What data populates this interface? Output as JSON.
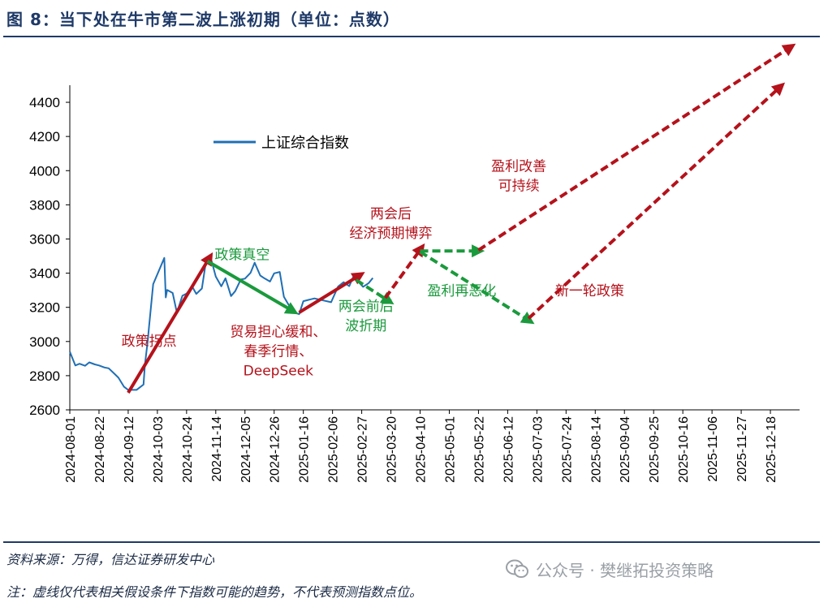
{
  "header": {
    "title": "图 8：当下处在牛市第二波上涨初期（单位：点数）"
  },
  "footer": {
    "source": "资料来源：万得，信达证券研发中心",
    "note": "注：虚线仅代表相关假设条件下指数可能的趋势，不代表预测指数点位。",
    "watermark": "公众号 · 樊继拓投资策略",
    "watermark_icon": "wechat-icon"
  },
  "chart_data": {
    "type": "line",
    "ylim": [
      2600,
      4500
    ],
    "yticks": [
      2600,
      2800,
      3000,
      3200,
      3400,
      3600,
      3800,
      4000,
      4200,
      4400
    ],
    "xlim": [
      "2024-08-01",
      "2026-01-08"
    ],
    "xticks": [
      "2024-08-01",
      "2024-08-22",
      "2024-09-12",
      "2024-10-03",
      "2024-10-24",
      "2024-11-14",
      "2024-12-05",
      "2024-12-26",
      "2025-01-16",
      "2025-02-06",
      "2025-02-27",
      "2025-03-20",
      "2025-04-10",
      "2025-05-01",
      "2025-05-22",
      "2025-06-12",
      "2025-07-03",
      "2025-07-24",
      "2025-08-14",
      "2025-09-04",
      "2025-09-25",
      "2025-10-16",
      "2025-11-06",
      "2025-11-27",
      "2025-12-18"
    ],
    "legend": {
      "position": "top-left"
    },
    "colors": {
      "series": "#1f6fb5",
      "policy_arrow": "#b5121b",
      "correction_arrow": "#1a9a3c",
      "axis": "#000000"
    },
    "series": [
      {
        "name": "上证综合指数",
        "x": [
          "2024-08-01",
          "2024-08-05",
          "2024-08-08",
          "2024-08-12",
          "2024-08-15",
          "2024-08-19",
          "2024-08-22",
          "2024-08-26",
          "2024-08-29",
          "2024-09-02",
          "2024-09-05",
          "2024-09-09",
          "2024-09-12",
          "2024-09-18",
          "2024-09-23",
          "2024-09-24",
          "2024-09-26",
          "2024-09-27",
          "2024-09-30",
          "2024-10-08",
          "2024-10-09",
          "2024-10-10",
          "2024-10-14",
          "2024-10-17",
          "2024-10-21",
          "2024-10-24",
          "2024-10-28",
          "2024-10-31",
          "2024-11-04",
          "2024-11-07",
          "2024-11-11",
          "2024-11-14",
          "2024-11-18",
          "2024-11-21",
          "2024-11-25",
          "2024-11-28",
          "2024-12-02",
          "2024-12-05",
          "2024-12-09",
          "2024-12-12",
          "2024-12-16",
          "2024-12-19",
          "2024-12-23",
          "2024-12-26",
          "2024-12-30",
          "2025-01-02",
          "2025-01-06",
          "2025-01-10",
          "2025-01-13",
          "2025-01-16",
          "2025-01-20",
          "2025-01-24",
          "2025-02-05",
          "2025-02-10",
          "2025-02-14",
          "2025-02-18",
          "2025-02-21",
          "2025-02-25",
          "2025-02-28",
          "2025-03-04",
          "2025-03-07"
        ],
        "values": [
          2940,
          2860,
          2870,
          2858,
          2878,
          2866,
          2860,
          2848,
          2843,
          2812,
          2788,
          2735,
          2717,
          2717,
          2748,
          2863,
          3000,
          3087,
          3336,
          3489,
          3258,
          3302,
          3284,
          3169,
          3268,
          3280,
          3322,
          3279,
          3310,
          3470,
          3470,
          3380,
          3323,
          3370,
          3266,
          3295,
          3363,
          3368,
          3402,
          3461,
          3386,
          3370,
          3351,
          3399,
          3407,
          3262,
          3206,
          3168,
          3160,
          3236,
          3244,
          3252,
          3230,
          3322,
          3347,
          3324,
          3380,
          3346,
          3320,
          3342,
          3372
        ]
      }
    ],
    "arrows": [
      {
        "style": "solid",
        "color": "policy_arrow",
        "from": [
          "2024-09-12",
          2700
        ],
        "to": [
          "2024-11-08",
          3470
        ],
        "label": "政策拐点"
      },
      {
        "style": "solid",
        "color": "correction_arrow",
        "from": [
          "2024-11-08",
          3470
        ],
        "to": [
          "2025-01-06",
          3190
        ],
        "label": "政策真空"
      },
      {
        "style": "solid",
        "color": "policy_arrow",
        "from": [
          "2025-01-13",
          3170
        ],
        "to": [
          "2025-02-23",
          3375
        ],
        "label": "贸易担心缓和、春季行情、DeepSeek"
      },
      {
        "style": "dashed",
        "color": "correction_arrow",
        "from": [
          "2025-02-23",
          3360
        ],
        "to": [
          "2025-03-16",
          3250
        ],
        "label": "两会前后波折期"
      },
      {
        "style": "dashed",
        "color": "policy_arrow",
        "from": [
          "2025-03-16",
          3255
        ],
        "to": [
          "2025-04-09",
          3525
        ],
        "label": "两会后经济预期博弈"
      },
      {
        "style": "dashed",
        "color": "correction_arrow",
        "from": [
          "2025-04-10",
          3530
        ],
        "to": [
          "2025-05-19",
          3530
        ]
      },
      {
        "style": "dashed",
        "color": "policy_arrow",
        "from": [
          "2025-05-22",
          3535
        ],
        "to": [
          "2025-12-30",
          4710
        ],
        "label": "盈利改善可持续"
      },
      {
        "style": "dashed",
        "color": "correction_arrow",
        "from": [
          "2025-04-10",
          3525
        ],
        "to": [
          "2025-06-25",
          3135
        ],
        "label": "盈利再恶化"
      },
      {
        "style": "dashed",
        "color": "policy_arrow",
        "from": [
          "2025-06-27",
          3135
        ],
        "to": [
          "2025-12-23",
          4475
        ],
        "label": "新一轮政策"
      }
    ],
    "annotations": [
      {
        "id": "policy-turn",
        "lines": [
          "政策拐点"
        ],
        "color": "policy_arrow",
        "at": [
          "2024-09-27",
          2975
        ]
      },
      {
        "id": "policy-vacuum",
        "lines": [
          "政策真空"
        ],
        "color": "correction_arrow",
        "at": [
          "2024-12-03",
          3480
        ]
      },
      {
        "id": "trade-easing",
        "lines": [
          "贸易担心缓和、",
          "春季行情、",
          "DeepSeek"
        ],
        "color": "policy_arrow",
        "at": [
          "2024-12-29",
          3030
        ]
      },
      {
        "id": "two-sessions",
        "lines": [
          "两会前后",
          "波折期"
        ],
        "color": "correction_arrow",
        "at": [
          "2025-03-02",
          3180
        ]
      },
      {
        "id": "after-sessions",
        "lines": [
          "两会后",
          "经济预期博弈"
        ],
        "color": "policy_arrow",
        "at": [
          "2025-03-20",
          3720
        ]
      },
      {
        "id": "profit-improve",
        "lines": [
          "盈利改善",
          "可持续"
        ],
        "color": "policy_arrow",
        "at": [
          "2025-06-20",
          4000
        ]
      },
      {
        "id": "profit-worse",
        "lines": [
          "盈利再恶化"
        ],
        "color": "correction_arrow",
        "at": [
          "2025-05-10",
          3270
        ]
      },
      {
        "id": "new-policy",
        "lines": [
          "新一轮政策"
        ],
        "color": "policy_arrow",
        "at": [
          "2025-08-10",
          3270
        ]
      }
    ]
  }
}
